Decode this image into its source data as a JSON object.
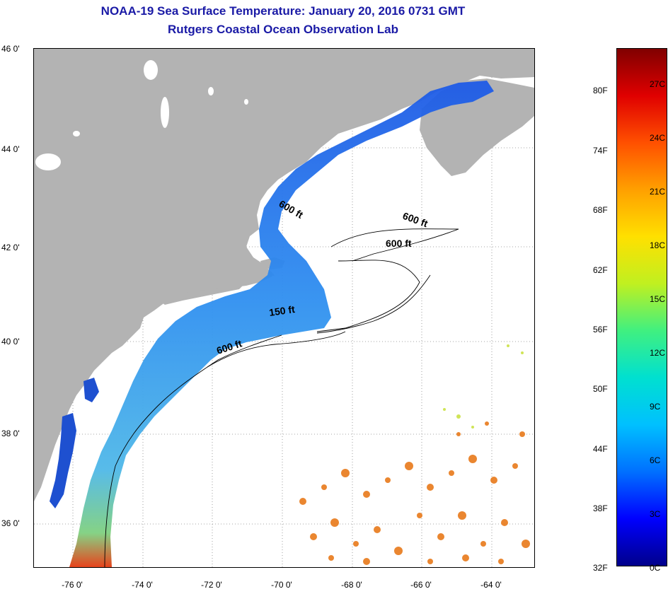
{
  "header": {
    "title": "NOAA-19 Sea Surface Temperature:  January 20, 2016 0731 GMT",
    "subtitle": "Rutgers Coastal Ocean Observation Lab"
  },
  "map": {
    "lat_labels": [
      "46 0'",
      "44 0'",
      "42 0'",
      "40 0'",
      "38 0'",
      "36 0'"
    ],
    "lon_labels": [
      "-76 0'",
      "-74 0'",
      "-72 0'",
      "-70 0'",
      "-68 0'",
      "-66 0'",
      "-64 0'"
    ],
    "contour_labels": {
      "a": "600 ft",
      "b": "600 ft",
      "c": "600 ft",
      "d": "150 ft",
      "e": "600 ft"
    },
    "colors": {
      "land": "#b3b3b3",
      "cold_water": "#1e5ae6",
      "warm_water": "#e87a1a"
    }
  },
  "colorbar": {
    "fahrenheit": [
      "80F",
      "74F",
      "68F",
      "62F",
      "56F",
      "50F",
      "44F",
      "38F",
      "32F"
    ],
    "celsius": [
      "27C",
      "24C",
      "21C",
      "18C",
      "15C",
      "12C",
      "9C",
      "6C",
      "3C",
      "0C"
    ],
    "gradient": [
      "#00008b",
      "#0000ff",
      "#0070ff",
      "#00c0ff",
      "#00e0d0",
      "#40f080",
      "#c0f020",
      "#ffe000",
      "#ffa000",
      "#ff5000",
      "#e00000",
      "#800000"
    ]
  }
}
